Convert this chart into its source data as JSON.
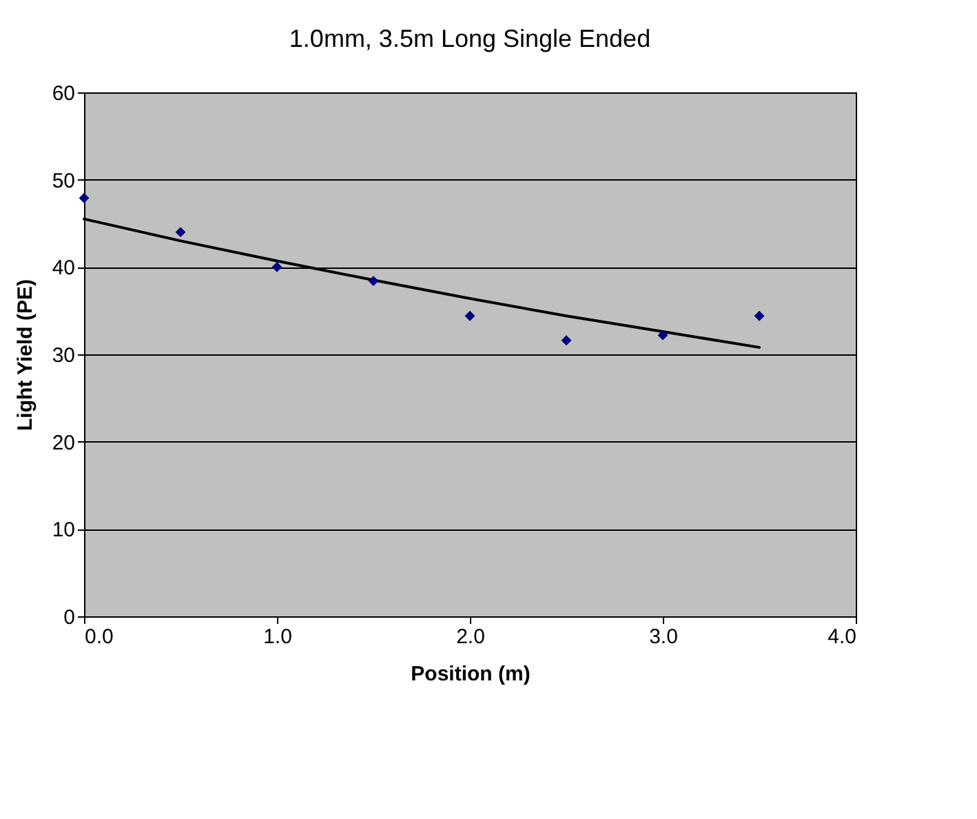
{
  "chart_data": {
    "type": "scatter",
    "title": "1.0mm, 3.5m Long Single Ended",
    "xlabel": "Position (m)",
    "ylabel": "Light Yield (PE)",
    "xlim": [
      0,
      4
    ],
    "xticks": [
      {
        "value": 0,
        "label": "0.0"
      },
      {
        "value": 1,
        "label": "1.0"
      },
      {
        "value": 2,
        "label": "2.0"
      },
      {
        "value": 3,
        "label": "3.0"
      },
      {
        "value": 4,
        "label": "4.0"
      }
    ],
    "ylim": [
      0,
      60
    ],
    "yticks": [
      0,
      10,
      20,
      30,
      40,
      50,
      60
    ],
    "grid": "y",
    "series": [
      {
        "marker": "diamond",
        "color": "#000080",
        "x": [
          0,
          0.5,
          1,
          1.5,
          2,
          2.5,
          3,
          3.5
        ],
        "values": [
          47.9,
          44.0,
          40.0,
          38.4,
          34.4,
          31.6,
          32.2,
          34.4
        ]
      },
      {
        "type": "line",
        "marker": "none",
        "color": "#000000",
        "x": [
          0,
          0.5,
          1,
          1.5,
          2,
          2.5,
          3,
          3.5
        ],
        "values": [
          45.5,
          43.0,
          40.7,
          38.5,
          36.4,
          34.4,
          32.6,
          30.8
        ]
      }
    ]
  }
}
